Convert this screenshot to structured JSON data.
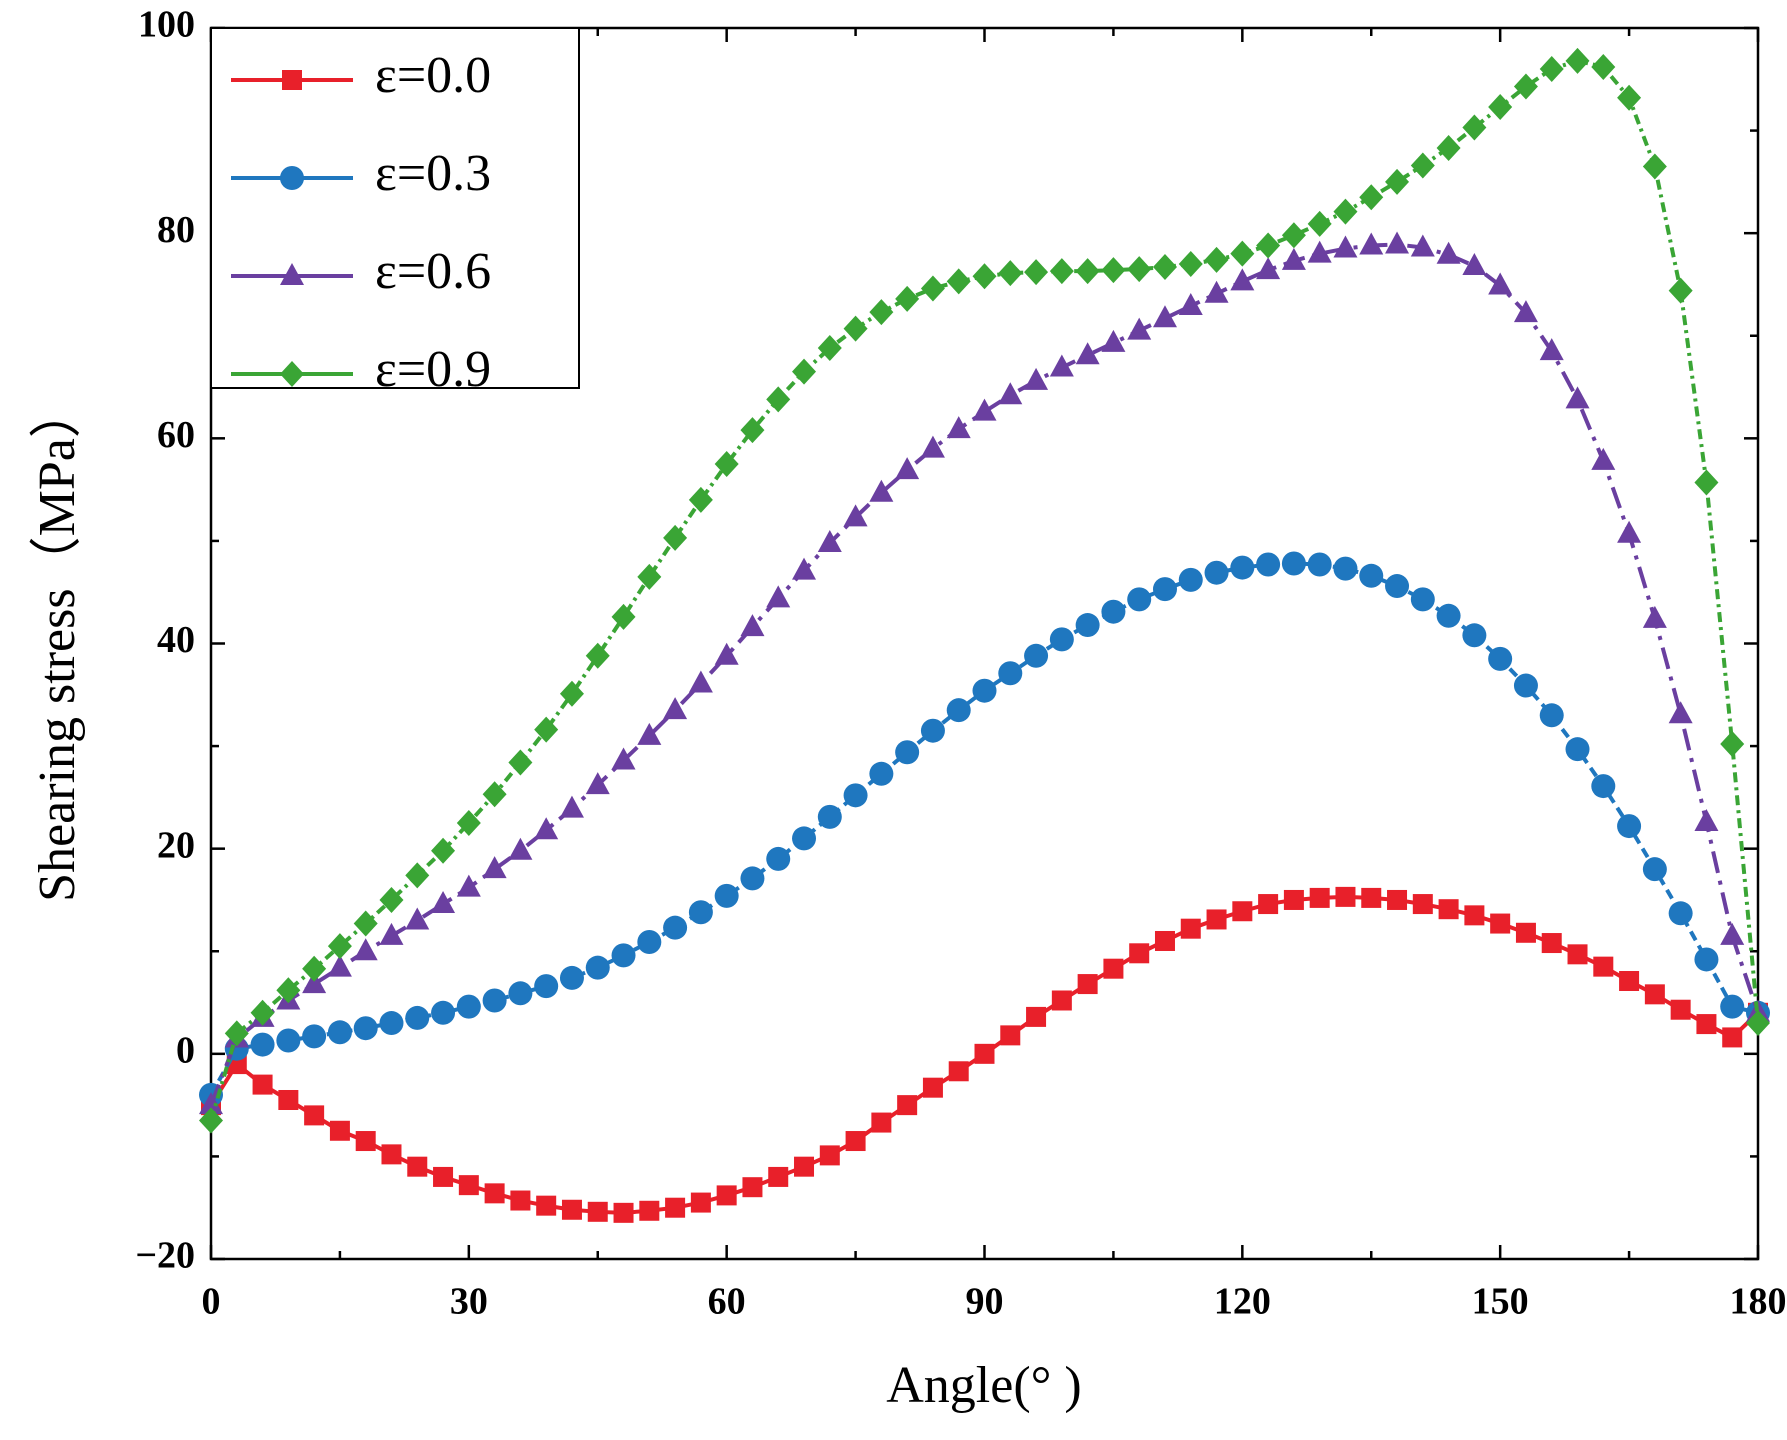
{
  "chart_data": {
    "type": "line",
    "x_label": "Angle(° )",
    "y_label": "Shearing stress（MPa）",
    "x": [
      0,
      3,
      6,
      9,
      12,
      15,
      18,
      21,
      24,
      27,
      30,
      33,
      36,
      39,
      42,
      45,
      48,
      51,
      54,
      57,
      60,
      63,
      66,
      69,
      72,
      75,
      78,
      81,
      84,
      87,
      90,
      93,
      96,
      99,
      102,
      105,
      108,
      111,
      114,
      117,
      120,
      123,
      126,
      129,
      132,
      135,
      138,
      141,
      144,
      147,
      150,
      153,
      156,
      159,
      162,
      165,
      168,
      171,
      174,
      177,
      180
    ],
    "xlim": [
      0,
      180
    ],
    "xticks": [
      0,
      30,
      60,
      90,
      120,
      150,
      180
    ],
    "ylim": [
      -20,
      100
    ],
    "yticks": [
      {
        "value": -20,
        "label": "−20"
      },
      0,
      20,
      40,
      60,
      80,
      100
    ],
    "legend": "upper left",
    "series": [
      {
        "name": "ε=0.0",
        "color": "#e8202a",
        "marker": "square",
        "values": [
          -5,
          -1,
          -3,
          -4.5,
          -6,
          -7.5,
          -8.5,
          -9.8,
          -11,
          -12,
          -12.8,
          -13.6,
          -14.3,
          -14.8,
          -15.2,
          -15.4,
          -15.5,
          -15.3,
          -15,
          -14.5,
          -13.8,
          -13,
          -12,
          -11,
          -9.9,
          -8.5,
          -6.7,
          -5,
          -3.3,
          -1.7,
          0,
          1.8,
          3.6,
          5.2,
          6.8,
          8.3,
          9.8,
          11,
          12.2,
          13.1,
          13.9,
          14.6,
          15,
          15.2,
          15.3,
          15.2,
          15,
          14.6,
          14.1,
          13.5,
          12.7,
          11.8,
          10.8,
          9.7,
          8.5,
          7.1,
          5.8,
          4.3,
          2.9,
          1.6,
          4
        ]
      },
      {
        "name": "ε=0.3",
        "color": "#1f77bf",
        "marker": "circle",
        "values": [
          -4,
          0.5,
          0.9,
          1.3,
          1.7,
          2.1,
          2.5,
          3,
          3.5,
          4,
          4.6,
          5.2,
          5.9,
          6.6,
          7.4,
          8.4,
          9.6,
          10.9,
          12.3,
          13.8,
          15.4,
          17.1,
          19,
          21,
          23.1,
          25.2,
          27.3,
          29.4,
          31.5,
          33.5,
          35.4,
          37.1,
          38.8,
          40.4,
          41.8,
          43.1,
          44.3,
          45.3,
          46.2,
          46.9,
          47.4,
          47.7,
          47.8,
          47.7,
          47.3,
          46.6,
          45.6,
          44.3,
          42.7,
          40.8,
          38.5,
          35.9,
          33,
          29.7,
          26.1,
          22.2,
          18,
          13.7,
          9.2,
          4.6,
          4
        ]
      },
      {
        "name": "ε=0.6",
        "color": "#6a3fa0",
        "marker": "triangle",
        "values": [
          -5,
          1.5,
          3.5,
          5.2,
          6.8,
          8.4,
          10,
          11.5,
          13,
          14.6,
          16.2,
          18,
          19.8,
          21.8,
          23.9,
          26.2,
          28.6,
          31,
          33.5,
          36.1,
          38.8,
          41.6,
          44.4,
          47.1,
          49.8,
          52.3,
          54.7,
          56.9,
          59,
          60.9,
          62.6,
          64.2,
          65.6,
          66.9,
          68.1,
          69.3,
          70.5,
          71.7,
          72.9,
          74.1,
          75.3,
          76.4,
          77.3,
          78,
          78.5,
          78.8,
          78.9,
          78.6,
          77.9,
          76.8,
          74.9,
          72.2,
          68.5,
          63.8,
          57.8,
          50.7,
          42.4,
          33.1,
          22.6,
          11.5,
          4
        ]
      },
      {
        "name": "ε=0.9",
        "color": "#3aa535",
        "marker": "diamond",
        "values": [
          -6.5,
          2,
          4,
          6.2,
          8.3,
          10.5,
          12.7,
          15,
          17.4,
          19.8,
          22.5,
          25.3,
          28.4,
          31.6,
          35.1,
          38.8,
          42.6,
          46.5,
          50.3,
          54,
          57.5,
          60.8,
          63.8,
          66.5,
          68.8,
          70.7,
          72.3,
          73.6,
          74.6,
          75.3,
          75.8,
          76.1,
          76.2,
          76.3,
          76.3,
          76.4,
          76.5,
          76.7,
          77,
          77.4,
          78,
          78.8,
          79.8,
          80.9,
          82.1,
          83.5,
          85,
          86.6,
          88.3,
          90.3,
          92.3,
          94.3,
          96,
          96.8,
          96.2,
          93.2,
          86.5,
          74.4,
          55.7,
          30.2,
          3
        ]
      }
    ]
  }
}
